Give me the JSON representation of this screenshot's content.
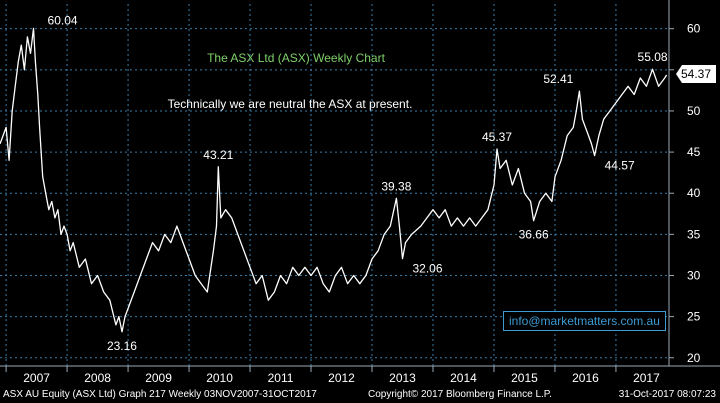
{
  "chart_data": {
    "type": "line",
    "title": "The ASX Ltd (ASX) Weekly Chart",
    "subtitle": "Technically we are neutral the ASX at present.",
    "xlabel": "",
    "ylabel": "",
    "x_ticks": [
      "2007",
      "2008",
      "2009",
      "2010",
      "2011",
      "2012",
      "2013",
      "2014",
      "2015",
      "2016",
      "2017"
    ],
    "y_ticks": [
      20,
      25,
      30,
      35,
      40,
      45,
      50,
      55,
      60
    ],
    "ylim": [
      19,
      63
    ],
    "xlim": [
      2006.9,
      2017.87
    ],
    "grid": true,
    "series": [
      {
        "color": "#ffffff",
        "points": [
          [
            2006.9,
            46
          ],
          [
            2007.0,
            48
          ],
          [
            2007.05,
            44
          ],
          [
            2007.1,
            50
          ],
          [
            2007.15,
            53
          ],
          [
            2007.2,
            56
          ],
          [
            2007.25,
            58
          ],
          [
            2007.3,
            55
          ],
          [
            2007.35,
            59
          ],
          [
            2007.4,
            57
          ],
          [
            2007.45,
            60.04
          ],
          [
            2007.48,
            56
          ],
          [
            2007.52,
            52
          ],
          [
            2007.55,
            48
          ],
          [
            2007.6,
            42
          ],
          [
            2007.65,
            40
          ],
          [
            2007.7,
            38
          ],
          [
            2007.75,
            39
          ],
          [
            2007.8,
            37
          ],
          [
            2007.85,
            38
          ],
          [
            2007.9,
            35
          ],
          [
            2007.95,
            36
          ],
          [
            2008.0,
            35
          ],
          [
            2008.05,
            33
          ],
          [
            2008.1,
            34
          ],
          [
            2008.2,
            31
          ],
          [
            2008.3,
            32
          ],
          [
            2008.4,
            29
          ],
          [
            2008.5,
            30
          ],
          [
            2008.6,
            28
          ],
          [
            2008.7,
            27
          ],
          [
            2008.8,
            24
          ],
          [
            2008.85,
            25
          ],
          [
            2008.9,
            23.16
          ],
          [
            2008.95,
            25
          ],
          [
            2009.0,
            26
          ],
          [
            2009.1,
            28
          ],
          [
            2009.2,
            30
          ],
          [
            2009.3,
            32
          ],
          [
            2009.4,
            34
          ],
          [
            2009.5,
            33
          ],
          [
            2009.6,
            35
          ],
          [
            2009.7,
            34
          ],
          [
            2009.8,
            36
          ],
          [
            2009.9,
            34
          ],
          [
            2010.0,
            32
          ],
          [
            2010.1,
            30
          ],
          [
            2010.2,
            29
          ],
          [
            2010.3,
            28
          ],
          [
            2010.4,
            33
          ],
          [
            2010.45,
            36
          ],
          [
            2010.48,
            43.21
          ],
          [
            2010.52,
            37
          ],
          [
            2010.6,
            38
          ],
          [
            2010.7,
            37
          ],
          [
            2010.8,
            35
          ],
          [
            2010.9,
            33
          ],
          [
            2011.0,
            31
          ],
          [
            2011.1,
            29
          ],
          [
            2011.2,
            30
          ],
          [
            2011.3,
            27
          ],
          [
            2011.4,
            28
          ],
          [
            2011.5,
            30
          ],
          [
            2011.6,
            29
          ],
          [
            2011.7,
            31
          ],
          [
            2011.8,
            30
          ],
          [
            2011.9,
            31
          ],
          [
            2012.0,
            30
          ],
          [
            2012.1,
            31
          ],
          [
            2012.2,
            29
          ],
          [
            2012.3,
            28
          ],
          [
            2012.4,
            30
          ],
          [
            2012.5,
            31
          ],
          [
            2012.6,
            29
          ],
          [
            2012.7,
            30
          ],
          [
            2012.8,
            29
          ],
          [
            2012.9,
            30
          ],
          [
            2013.0,
            32
          ],
          [
            2013.1,
            33
          ],
          [
            2013.2,
            35
          ],
          [
            2013.3,
            36
          ],
          [
            2013.4,
            39.38
          ],
          [
            2013.45,
            36
          ],
          [
            2013.5,
            32.06
          ],
          [
            2013.55,
            34
          ],
          [
            2013.65,
            35
          ],
          [
            2013.8,
            36
          ],
          [
            2013.9,
            37
          ],
          [
            2014.0,
            38
          ],
          [
            2014.1,
            37
          ],
          [
            2014.2,
            38
          ],
          [
            2014.3,
            36
          ],
          [
            2014.4,
            37
          ],
          [
            2014.5,
            36
          ],
          [
            2014.6,
            37
          ],
          [
            2014.7,
            36
          ],
          [
            2014.8,
            37
          ],
          [
            2014.9,
            38
          ],
          [
            2015.0,
            41
          ],
          [
            2015.05,
            45.37
          ],
          [
            2015.1,
            43
          ],
          [
            2015.2,
            44
          ],
          [
            2015.3,
            41
          ],
          [
            2015.4,
            43
          ],
          [
            2015.5,
            40
          ],
          [
            2015.6,
            39
          ],
          [
            2015.65,
            36.66
          ],
          [
            2015.75,
            39
          ],
          [
            2015.85,
            40
          ],
          [
            2015.95,
            39
          ],
          [
            2016.0,
            42
          ],
          [
            2016.1,
            44
          ],
          [
            2016.2,
            47
          ],
          [
            2016.3,
            48
          ],
          [
            2016.35,
            50
          ],
          [
            2016.4,
            52.41
          ],
          [
            2016.45,
            49
          ],
          [
            2016.55,
            47
          ],
          [
            2016.6,
            46
          ],
          [
            2016.65,
            44.57
          ],
          [
            2016.72,
            47
          ],
          [
            2016.8,
            49
          ],
          [
            2016.9,
            50
          ],
          [
            2017.0,
            51
          ],
          [
            2017.1,
            52
          ],
          [
            2017.2,
            53
          ],
          [
            2017.3,
            52
          ],
          [
            2017.4,
            54
          ],
          [
            2017.5,
            53
          ],
          [
            2017.6,
            55.08
          ],
          [
            2017.7,
            53
          ],
          [
            2017.8,
            54
          ],
          [
            2017.83,
            54.37
          ]
        ]
      }
    ],
    "annotations": [
      {
        "text": "60.04",
        "x": 2007.45,
        "y": 60.04,
        "pos": "above-right"
      },
      {
        "text": "23.16",
        "x": 2008.9,
        "y": 23.16,
        "pos": "below"
      },
      {
        "text": "43.21",
        "x": 2010.48,
        "y": 43.21,
        "pos": "above"
      },
      {
        "text": "39.38",
        "x": 2013.4,
        "y": 39.38,
        "pos": "above"
      },
      {
        "text": "32.06",
        "x": 2013.5,
        "y": 32.06,
        "pos": "below-right"
      },
      {
        "text": "45.37",
        "x": 2015.05,
        "y": 45.37,
        "pos": "above"
      },
      {
        "text": "36.66",
        "x": 2015.65,
        "y": 36.66,
        "pos": "below"
      },
      {
        "text": "52.41",
        "x": 2016.4,
        "y": 52.41,
        "pos": "above-left"
      },
      {
        "text": "44.57",
        "x": 2016.65,
        "y": 44.57,
        "pos": "below-right"
      },
      {
        "text": "55.08",
        "x": 2017.6,
        "y": 55.08,
        "pos": "above"
      }
    ],
    "last_price": "54.37"
  },
  "watermark": "info@marketmatters.com.au",
  "footer": {
    "left": "ASX AU Equity (ASX Ltd) Graph 217  Weekly 03NOV2007-31OCT2017",
    "middle": "Copyright© 2017 Bloomberg Finance L.P.",
    "right": "31-Oct-2017 08:07:23"
  },
  "colors": {
    "background": "#000000",
    "price_line": "#ffffff",
    "grid": "#3a7ca8",
    "title": "#7fd06a",
    "watermark": "#3d9bd4"
  }
}
